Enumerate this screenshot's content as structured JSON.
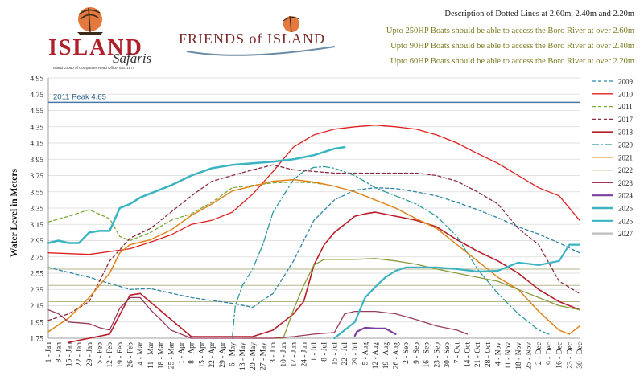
{
  "header": {
    "logo_left_word1": "ISLAND",
    "logo_left_word2": "Safaris",
    "logo_left_tagline": "Island Group of Companies Head Office, Est. 1974",
    "logo_right": "FRIENDS of ISLAND",
    "notes": [
      "Description of Dotted Lines at 2.60m, 2.40m and 2.20m",
      "Upto 250HP Boats should be able to access the Boro River at over 2.60m",
      "Upto 90HP Boats should be able to access the Boro River at over 2.40m",
      "Upto 60HP Boats should be able to access the Boro River at over 2.20m"
    ]
  },
  "colors": {
    "grid": "#d9d9d9",
    "threshold": "#b5b58a",
    "peak": "#4a77a6",
    "axis": "#888888"
  },
  "chart_data": {
    "type": "line",
    "ylabel": "Water Level in Meters",
    "ylim": [
      1.75,
      4.95
    ],
    "yticks": [
      "4.95",
      "4.75",
      "4.55",
      "4.35",
      "4.15",
      "3.95",
      "3.75",
      "3.55",
      "3.35",
      "3.15",
      "2.95",
      "2.75",
      "2.55",
      "2.35",
      "2.15",
      "1.95",
      "1.75"
    ],
    "x_labels": [
      "1 - Jan",
      "8 - Jan",
      "15 - Jan",
      "22 - Jan",
      "29 - Jan",
      "5 - Feb",
      "12 - Feb",
      "19 - Feb",
      "26 - Feb",
      "4 - Mar",
      "11 - Mar",
      "18 - Mar",
      "25 - Mar",
      "1 - Apr",
      "8 - Apr",
      "15 - Apr",
      "22 - Apr",
      "29 - Apr",
      "6 - May",
      "13 - May",
      "20 - May",
      "27 - May",
      "3 - Jun",
      "10 - Jun",
      "17 - Jun",
      "24 - Jun",
      "1 - Jul",
      "8 - Jul",
      "15 - Jul",
      "22 - Jul",
      "29 - Jul",
      "5 - Aug",
      "12 - Aug",
      "19 - Aug",
      "26 - Aug",
      "2 - Sep",
      "9 - Sep",
      "16 - Sep",
      "23 - Sep",
      "30 - Sep",
      "7 - Oct",
      "14 - Oct",
      "21 - Oct",
      "28 - Oct",
      "4 - Nov",
      "11 - Nov",
      "18 - Nov",
      "25 - Nov",
      "2 - Dec",
      "9 - Dec",
      "16 - Dec",
      "23 - Dec",
      "30 - Dec"
    ],
    "peak_line": {
      "label": "2011 Peak 4.65",
      "value": 4.65
    },
    "threshold_lines": [
      2.6,
      2.4,
      2.2
    ],
    "legend_placement": "right",
    "series": [
      {
        "name": "2009",
        "color": "#2e86a6",
        "dash": "4,3",
        "width": 1.3,
        "points": [
          [
            0,
            2.62
          ],
          [
            4,
            2.5
          ],
          [
            8,
            2.35
          ],
          [
            10,
            2.36
          ],
          [
            14,
            2.25
          ],
          [
            18,
            2.18
          ],
          [
            20,
            2.13
          ],
          [
            22,
            2.3
          ],
          [
            24,
            2.7
          ],
          [
            26,
            3.2
          ],
          [
            28,
            3.45
          ],
          [
            30,
            3.57
          ],
          [
            32,
            3.6
          ],
          [
            34,
            3.59
          ],
          [
            36,
            3.55
          ],
          [
            38,
            3.5
          ],
          [
            40,
            3.42
          ],
          [
            42,
            3.33
          ],
          [
            44,
            3.23
          ],
          [
            46,
            3.12
          ],
          [
            48,
            3.03
          ],
          [
            50,
            2.92
          ],
          [
            52,
            2.8
          ]
        ]
      },
      {
        "name": "2010",
        "color": "#e02020",
        "dash": "",
        "width": 1.3,
        "points": [
          [
            0,
            2.8
          ],
          [
            4,
            2.78
          ],
          [
            8,
            2.85
          ],
          [
            10,
            2.93
          ],
          [
            12,
            3.02
          ],
          [
            14,
            3.15
          ],
          [
            16,
            3.2
          ],
          [
            18,
            3.3
          ],
          [
            20,
            3.52
          ],
          [
            22,
            3.8
          ],
          [
            24,
            4.1
          ],
          [
            26,
            4.25
          ],
          [
            28,
            4.32
          ],
          [
            30,
            4.35
          ],
          [
            32,
            4.37
          ],
          [
            34,
            4.35
          ],
          [
            36,
            4.32
          ],
          [
            38,
            4.25
          ],
          [
            40,
            4.15
          ],
          [
            42,
            4.02
          ],
          [
            44,
            3.9
          ],
          [
            46,
            3.75
          ],
          [
            48,
            3.6
          ],
          [
            50,
            3.5
          ],
          [
            52,
            3.2
          ]
        ]
      },
      {
        "name": "2011",
        "color": "#7fa83b",
        "dash": "4,3",
        "width": 1.3,
        "points": [
          [
            0,
            3.18
          ],
          [
            2,
            3.25
          ],
          [
            4,
            3.33
          ],
          [
            6,
            3.22
          ],
          [
            7,
            3.0
          ],
          [
            8,
            2.95
          ],
          [
            10,
            3.05
          ],
          [
            12,
            3.2
          ],
          [
            14,
            3.28
          ],
          [
            16,
            3.42
          ],
          [
            18,
            3.6
          ],
          [
            20,
            3.63
          ],
          [
            22,
            3.66
          ],
          [
            24,
            3.67
          ],
          [
            26,
            3.66
          ],
          [
            27,
            3.64
          ]
        ]
      },
      {
        "name": "2017",
        "color": "#8a2a3c",
        "dash": "4,3",
        "width": 1.3,
        "points": [
          [
            0,
            1.97
          ],
          [
            2,
            2.05
          ],
          [
            4,
            2.2
          ],
          [
            6,
            2.7
          ],
          [
            8,
            2.98
          ],
          [
            10,
            3.1
          ],
          [
            12,
            3.3
          ],
          [
            14,
            3.5
          ],
          [
            16,
            3.68
          ],
          [
            18,
            3.75
          ],
          [
            20,
            3.82
          ],
          [
            22,
            3.88
          ],
          [
            24,
            3.82
          ],
          [
            26,
            3.8
          ],
          [
            28,
            3.78
          ],
          [
            30,
            3.78
          ],
          [
            32,
            3.78
          ],
          [
            34,
            3.78
          ],
          [
            36,
            3.78
          ],
          [
            38,
            3.75
          ],
          [
            40,
            3.68
          ],
          [
            42,
            3.55
          ],
          [
            44,
            3.4
          ],
          [
            46,
            3.1
          ],
          [
            48,
            2.9
          ],
          [
            50,
            2.45
          ],
          [
            52,
            2.3
          ]
        ]
      },
      {
        "name": "2018",
        "color": "#b81c2a",
        "dash": "",
        "width": 1.6,
        "points": [
          [
            2,
            1.7
          ],
          [
            6,
            1.8
          ],
          [
            8,
            2.28
          ],
          [
            9,
            2.3
          ],
          [
            14,
            1.77
          ],
          [
            20,
            1.77
          ],
          [
            22,
            1.85
          ],
          [
            24,
            2.05
          ],
          [
            25,
            2.2
          ],
          [
            26,
            2.65
          ],
          [
            27,
            2.9
          ],
          [
            28,
            3.05
          ],
          [
            30,
            3.25
          ],
          [
            31,
            3.28
          ],
          [
            32,
            3.3
          ],
          [
            34,
            3.25
          ],
          [
            36,
            3.2
          ],
          [
            38,
            3.12
          ],
          [
            40,
            2.96
          ],
          [
            42,
            2.82
          ],
          [
            44,
            2.7
          ],
          [
            46,
            2.55
          ],
          [
            48,
            2.35
          ],
          [
            50,
            2.2
          ],
          [
            52,
            2.1
          ]
        ]
      },
      {
        "name": "2020",
        "color": "#2e9aa0",
        "dash": "8,3,2,3",
        "width": 1.3,
        "points": [
          [
            18,
            1.75
          ],
          [
            18.3,
            2.15
          ],
          [
            19,
            2.4
          ],
          [
            20,
            2.6
          ],
          [
            21,
            2.9
          ],
          [
            22,
            3.3
          ],
          [
            23,
            3.5
          ],
          [
            24,
            3.7
          ],
          [
            25,
            3.8
          ],
          [
            26,
            3.85
          ],
          [
            27,
            3.86
          ],
          [
            28,
            3.84
          ],
          [
            30,
            3.75
          ],
          [
            32,
            3.6
          ],
          [
            34,
            3.5
          ],
          [
            36,
            3.4
          ],
          [
            38,
            3.25
          ],
          [
            40,
            3.0
          ],
          [
            42,
            2.6
          ],
          [
            44,
            2.3
          ],
          [
            46,
            2.05
          ],
          [
            48,
            1.85
          ],
          [
            49,
            1.8
          ]
        ]
      },
      {
        "name": "2021",
        "color": "#e0841a",
        "dash": "",
        "width": 1.5,
        "points": [
          [
            0,
            1.83
          ],
          [
            2,
            2.0
          ],
          [
            4,
            2.25
          ],
          [
            6,
            2.55
          ],
          [
            7,
            2.8
          ],
          [
            8,
            2.9
          ],
          [
            10,
            2.96
          ],
          [
            12,
            3.08
          ],
          [
            14,
            3.26
          ],
          [
            16,
            3.4
          ],
          [
            18,
            3.56
          ],
          [
            20,
            3.62
          ],
          [
            22,
            3.68
          ],
          [
            24,
            3.7
          ],
          [
            26,
            3.67
          ],
          [
            28,
            3.62
          ],
          [
            30,
            3.55
          ],
          [
            32,
            3.45
          ],
          [
            34,
            3.35
          ],
          [
            36,
            3.22
          ],
          [
            38,
            3.1
          ],
          [
            40,
            2.9
          ],
          [
            42,
            2.7
          ],
          [
            44,
            2.5
          ],
          [
            46,
            2.35
          ],
          [
            48,
            2.08
          ],
          [
            50,
            1.85
          ],
          [
            51,
            1.8
          ],
          [
            52,
            1.9
          ]
        ]
      },
      {
        "name": "2022",
        "color": "#8a9a3a",
        "dash": "",
        "width": 1.3,
        "points": [
          [
            19,
            1.75
          ],
          [
            21,
            1.75
          ],
          [
            23,
            1.75
          ],
          [
            24,
            2.1
          ],
          [
            25,
            2.4
          ],
          [
            26,
            2.65
          ],
          [
            27,
            2.72
          ],
          [
            28,
            2.72
          ],
          [
            30,
            2.72
          ],
          [
            32,
            2.73
          ],
          [
            34,
            2.7
          ],
          [
            36,
            2.66
          ],
          [
            38,
            2.6
          ],
          [
            40,
            2.55
          ],
          [
            42,
            2.5
          ],
          [
            44,
            2.45
          ],
          [
            46,
            2.35
          ],
          [
            48,
            2.25
          ],
          [
            50,
            2.15
          ],
          [
            52,
            2.1
          ]
        ]
      },
      {
        "name": "2023",
        "color": "#9a3a5c",
        "dash": "",
        "width": 1.3,
        "points": [
          [
            0,
            2.1
          ],
          [
            1,
            2.05
          ],
          [
            2,
            1.95
          ],
          [
            4,
            1.93
          ],
          [
            5,
            1.88
          ],
          [
            6,
            1.85
          ],
          [
            7,
            2.12
          ],
          [
            8,
            2.25
          ],
          [
            9,
            2.25
          ],
          [
            10,
            2.1
          ],
          [
            11,
            1.98
          ],
          [
            12,
            1.85
          ],
          [
            14,
            1.75
          ],
          [
            16,
            1.75
          ],
          [
            18,
            1.75
          ],
          [
            20,
            1.75
          ],
          [
            22,
            1.75
          ],
          [
            24,
            1.77
          ],
          [
            26,
            1.8
          ],
          [
            28,
            1.82
          ],
          [
            29,
            2.05
          ],
          [
            30,
            2.08
          ],
          [
            32,
            2.08
          ],
          [
            34,
            2.05
          ],
          [
            36,
            1.98
          ],
          [
            38,
            1.9
          ],
          [
            40,
            1.85
          ],
          [
            41,
            1.8
          ]
        ]
      },
      {
        "name": "2024",
        "color": "#7b3fa0",
        "dash": "",
        "width": 2.2,
        "points": [
          [
            30,
            1.78
          ],
          [
            30.2,
            1.83
          ],
          [
            31,
            1.88
          ],
          [
            32,
            1.87
          ],
          [
            33,
            1.87
          ],
          [
            34,
            1.8
          ]
        ]
      },
      {
        "name": "2025",
        "color": "#3ab4c2",
        "dash": "",
        "width": 2.5,
        "points": [
          [
            0,
            2.92
          ],
          [
            1,
            2.95
          ],
          [
            2,
            2.92
          ],
          [
            3,
            2.92
          ],
          [
            4,
            3.05
          ],
          [
            5,
            3.07
          ],
          [
            6,
            3.07
          ],
          [
            7,
            3.35
          ],
          [
            8,
            3.4
          ],
          [
            9,
            3.48
          ],
          [
            10,
            3.53
          ],
          [
            12,
            3.63
          ],
          [
            14,
            3.75
          ],
          [
            16,
            3.84
          ],
          [
            18,
            3.88
          ],
          [
            20,
            3.9
          ],
          [
            22,
            3.92
          ],
          [
            24,
            3.95
          ],
          [
            26,
            4.0
          ],
          [
            28,
            4.08
          ],
          [
            29,
            4.1
          ]
        ]
      },
      {
        "name": "2026",
        "color": "#3ab4c2",
        "dash": "",
        "width": 2.2,
        "points": [
          [
            28,
            1.75
          ],
          [
            29,
            1.85
          ],
          [
            30,
            1.95
          ],
          [
            31,
            2.25
          ],
          [
            32,
            2.38
          ],
          [
            33,
            2.5
          ],
          [
            34,
            2.58
          ],
          [
            35,
            2.62
          ],
          [
            36,
            2.62
          ],
          [
            38,
            2.62
          ],
          [
            40,
            2.6
          ],
          [
            42,
            2.57
          ],
          [
            44,
            2.58
          ],
          [
            46,
            2.68
          ],
          [
            48,
            2.65
          ],
          [
            50,
            2.7
          ],
          [
            51,
            2.9
          ],
          [
            52,
            2.9
          ]
        ]
      },
      {
        "name": "2027",
        "color": "#bdbdbd",
        "dash": "",
        "width": 2.2,
        "points": []
      }
    ]
  }
}
